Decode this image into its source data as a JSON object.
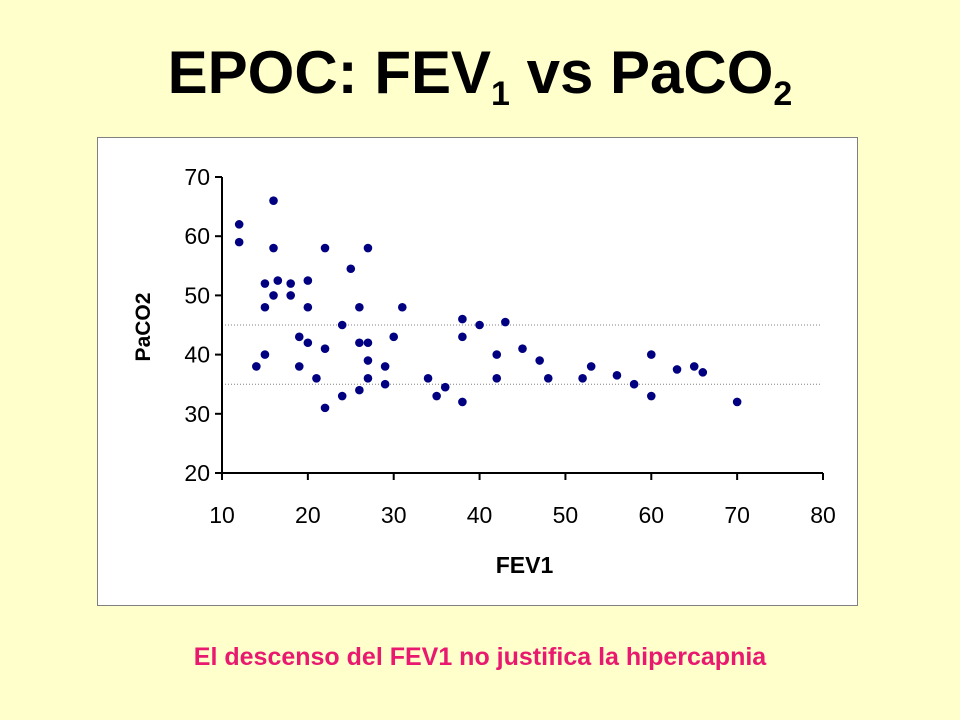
{
  "slide": {
    "title_main": "EPOC: FEV",
    "title_sub1": "1",
    "title_mid": " vs PaCO",
    "title_sub2": "2",
    "caption": "El descenso del FEV1 no justifica la hipercapnia"
  },
  "colors": {
    "background": "#ffffcc",
    "caption": "#e8196e",
    "points": "#000080"
  },
  "chart_data": {
    "type": "scatter",
    "xlabel": "FEV1",
    "ylabel": "PaCO2",
    "xlim": [
      10,
      80
    ],
    "ylim": [
      20,
      70
    ],
    "xticks": [
      10,
      20,
      30,
      40,
      50,
      60,
      70,
      80
    ],
    "yticks": [
      20,
      30,
      40,
      50,
      60,
      70
    ],
    "reference_lines_y": [
      45,
      35
    ],
    "grid": false,
    "legend": "none",
    "points": [
      [
        12,
        62
      ],
      [
        12,
        59
      ],
      [
        14,
        38
      ],
      [
        15,
        52
      ],
      [
        15,
        48
      ],
      [
        15,
        40
      ],
      [
        16,
        66
      ],
      [
        16,
        58
      ],
      [
        16,
        50
      ],
      [
        16.5,
        52.5
      ],
      [
        18,
        52
      ],
      [
        18,
        50
      ],
      [
        19,
        43
      ],
      [
        19,
        38
      ],
      [
        20,
        52.5
      ],
      [
        20,
        48
      ],
      [
        20,
        42
      ],
      [
        21,
        36
      ],
      [
        22,
        58
      ],
      [
        22,
        41
      ],
      [
        22,
        31
      ],
      [
        24,
        45
      ],
      [
        24,
        33
      ],
      [
        25,
        54.5
      ],
      [
        26,
        48
      ],
      [
        26,
        42
      ],
      [
        26,
        34
      ],
      [
        27,
        58
      ],
      [
        27,
        42
      ],
      [
        27,
        39
      ],
      [
        27,
        36
      ],
      [
        29,
        38
      ],
      [
        29,
        35
      ],
      [
        30,
        43
      ],
      [
        31,
        48
      ],
      [
        34,
        36
      ],
      [
        35,
        33
      ],
      [
        36,
        34.5
      ],
      [
        38,
        46
      ],
      [
        38,
        43
      ],
      [
        38,
        32
      ],
      [
        40,
        45
      ],
      [
        42,
        40
      ],
      [
        42,
        36
      ],
      [
        43,
        45.5
      ],
      [
        45,
        41
      ],
      [
        47,
        39
      ],
      [
        48,
        36
      ],
      [
        52,
        36
      ],
      [
        53,
        38
      ],
      [
        56,
        36.5
      ],
      [
        58,
        35
      ],
      [
        60,
        40
      ],
      [
        60,
        33
      ],
      [
        63,
        37.5
      ],
      [
        65,
        38
      ],
      [
        66,
        37
      ],
      [
        70,
        32
      ]
    ]
  }
}
